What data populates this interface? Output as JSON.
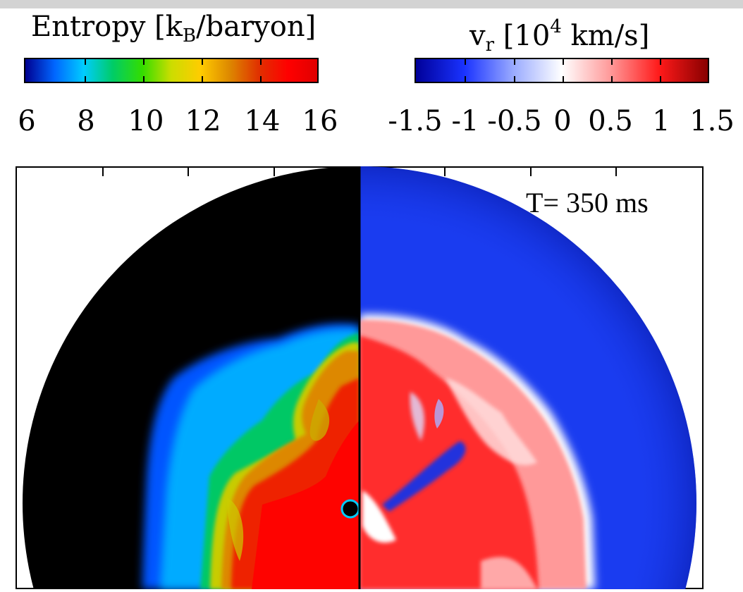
{
  "entropy_colorbar": {
    "title_main": "Entropy [k",
    "title_sub": "B",
    "title_tail": "/baryon]",
    "ticks": [
      "6",
      "8",
      "10",
      "12",
      "14",
      "16"
    ],
    "colors": [
      "#000090",
      "#0066ff",
      "#00ccff",
      "#00cc66",
      "#33dd00",
      "#ccdd00",
      "#ffcc00",
      "#dd8800",
      "#e03000",
      "#ff0000",
      "#e00000"
    ]
  },
  "velocity_colorbar": {
    "title_main": "v",
    "title_sub": "r",
    "title_mid": " [10",
    "title_sup": "4",
    "title_tail": " km/s]",
    "ticks": [
      "-1.5",
      "-1",
      "-0.5",
      "0",
      "0.5",
      "1",
      "1.5"
    ],
    "colors": [
      "#000099",
      "#1a33ff",
      "#99aaff",
      "#ffffff",
      "#ff9999",
      "#ff1a1a",
      "#880000"
    ]
  },
  "panel": {
    "time_label": "T= 350 ms",
    "left_field": "entropy",
    "right_field": "radial velocity",
    "outer_region_entropy_color": "#000000",
    "outer_region_velocity_color": "#1a3cf0"
  }
}
